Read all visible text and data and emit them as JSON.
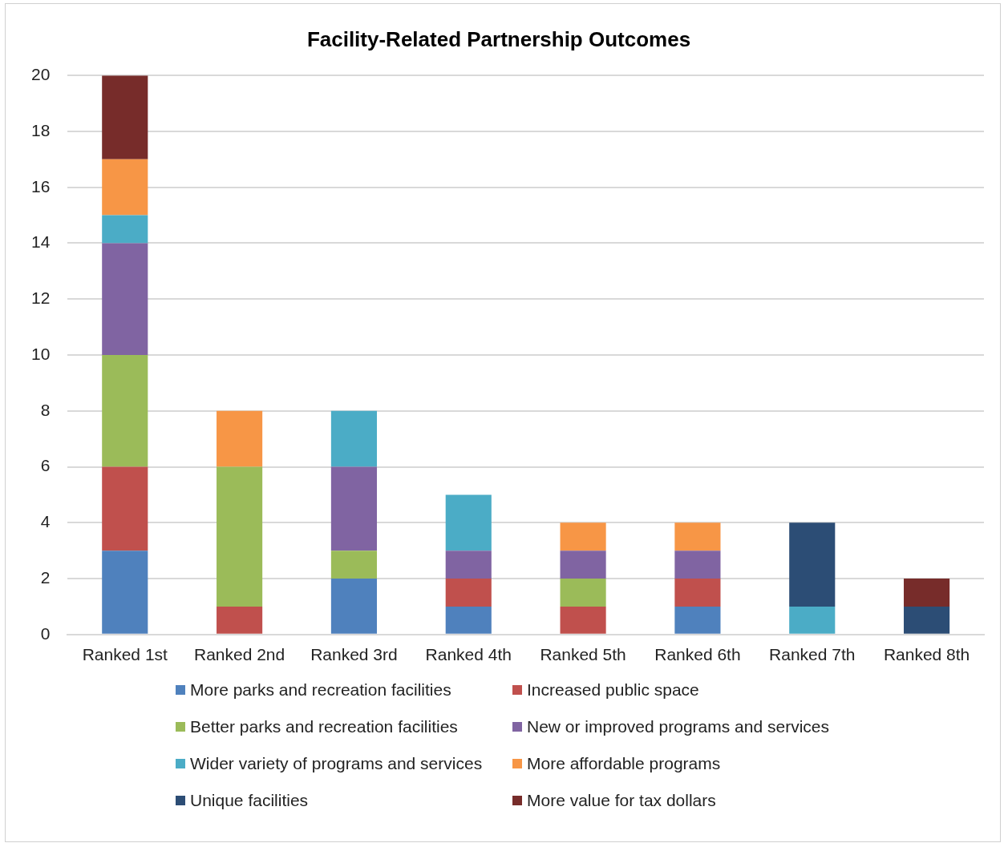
{
  "chart_data": {
    "type": "bar",
    "title": "Facility-Related Partnership Outcomes",
    "categories": [
      "Ranked 1st",
      "Ranked 2nd",
      "Ranked 3rd",
      "Ranked 4th",
      "Ranked 5th",
      "Ranked 6th",
      "Ranked 7th",
      "Ranked 8th"
    ],
    "stacked": true,
    "ylim": [
      0,
      20
    ],
    "yticks": [
      0,
      2,
      4,
      6,
      8,
      10,
      12,
      14,
      16,
      18,
      20
    ],
    "grid": "y",
    "legend": "bottom",
    "series": [
      {
        "name": "More parks and recreation facilities",
        "color": "#4f81bd",
        "values": [
          3,
          0,
          2,
          1,
          0,
          1,
          0,
          0
        ]
      },
      {
        "name": "Increased public space",
        "color": "#c0504d",
        "values": [
          3,
          1,
          0,
          1,
          1,
          1,
          0,
          0
        ]
      },
      {
        "name": "Better parks and recreation facilities",
        "color": "#9bbb59",
        "values": [
          4,
          5,
          1,
          0,
          1,
          0,
          0,
          0
        ]
      },
      {
        "name": "New or improved programs and services",
        "color": "#8064a2",
        "values": [
          4,
          0,
          3,
          1,
          1,
          1,
          0,
          0
        ]
      },
      {
        "name": "Wider variety of programs and services",
        "color": "#4bacc6",
        "values": [
          1,
          0,
          2,
          2,
          0,
          0,
          1,
          0
        ]
      },
      {
        "name": "More affordable programs",
        "color": "#f79646",
        "values": [
          2,
          2,
          0,
          0,
          1,
          1,
          0,
          0
        ]
      },
      {
        "name": "Unique facilities",
        "color": "#2c4d75",
        "values": [
          0,
          0,
          0,
          0,
          0,
          0,
          3,
          1
        ]
      },
      {
        "name": "More value for tax dollars",
        "color": "#772c2a",
        "values": [
          3,
          0,
          0,
          0,
          0,
          0,
          0,
          1
        ]
      }
    ]
  }
}
